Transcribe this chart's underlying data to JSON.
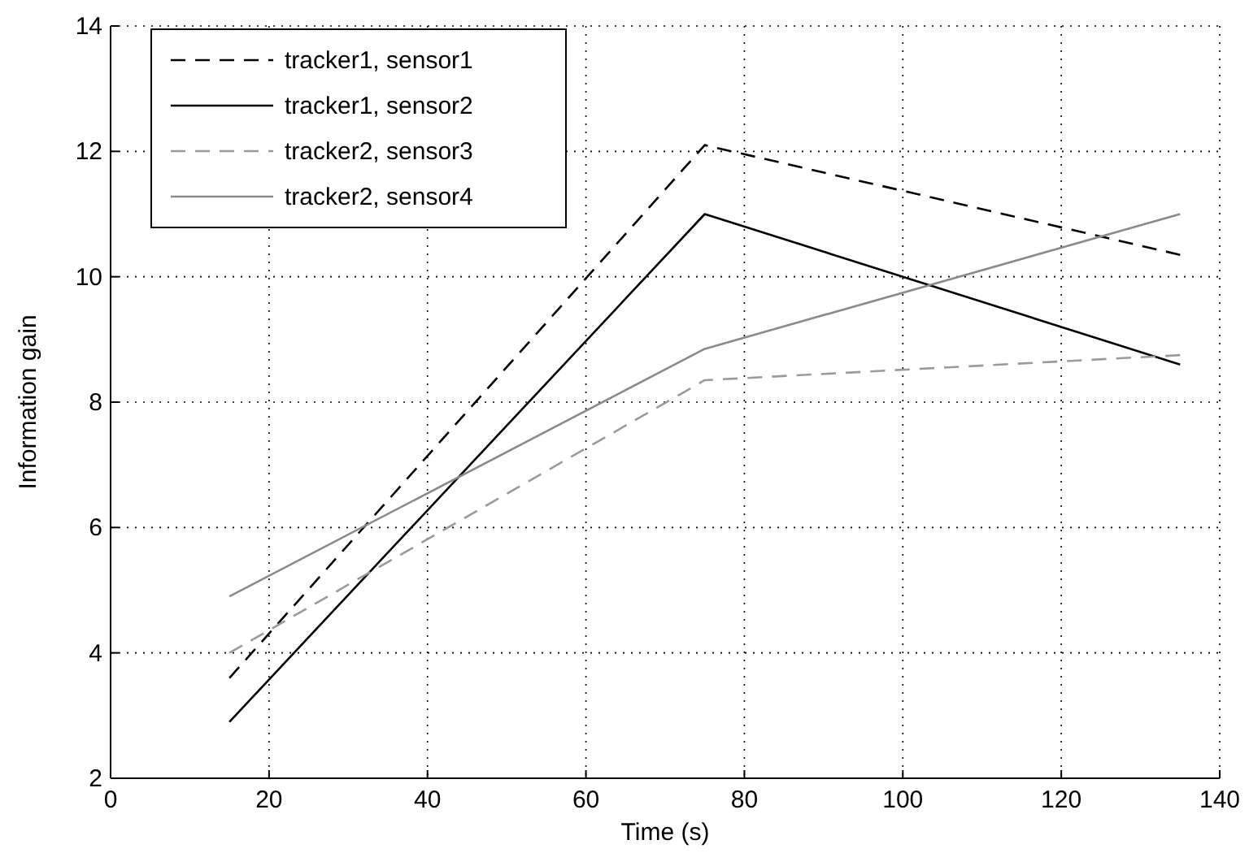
{
  "chart_data": {
    "type": "line",
    "xlabel": "Time (s)",
    "ylabel": "Information gain",
    "x": [
      15,
      75,
      135
    ],
    "series": [
      {
        "name": "tracker1, sensor1",
        "color": "#000000",
        "line_style": "dashed",
        "values": [
          3.6,
          12.1,
          10.35
        ]
      },
      {
        "name": "tracker1, sensor2",
        "color": "#000000",
        "line_style": "solid",
        "values": [
          2.9,
          11.0,
          8.6
        ]
      },
      {
        "name": "tracker2, sensor3",
        "color": "#9a9a9a",
        "line_style": "dashed",
        "values": [
          4.0,
          8.35,
          8.75
        ]
      },
      {
        "name": "tracker2, sensor4",
        "color": "#8a8a8a",
        "line_style": "solid",
        "values": [
          4.9,
          8.85,
          11.0
        ]
      }
    ],
    "xlim": [
      0,
      140
    ],
    "xticks": [
      0,
      20,
      40,
      60,
      80,
      100,
      120,
      140
    ],
    "ylim": [
      2,
      14
    ],
    "yticks": [
      2,
      4,
      6,
      8,
      10,
      12,
      14
    ],
    "grid": true,
    "legend": "top left"
  }
}
